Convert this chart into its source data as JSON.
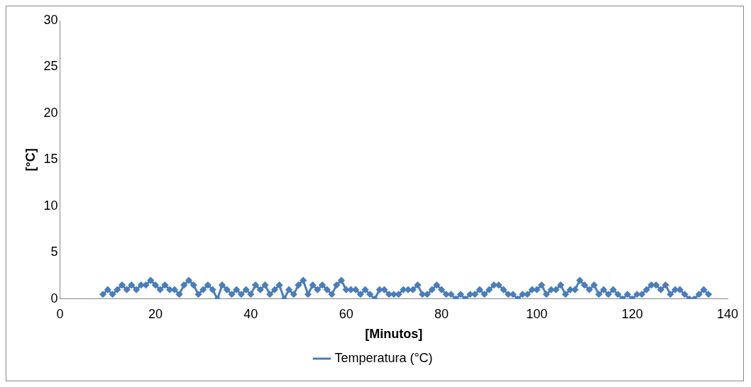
{
  "chart_data": {
    "type": "line",
    "xlabel": "[Minutos]",
    "ylabel": "[°C]",
    "x": [
      9,
      10,
      11,
      12,
      13,
      14,
      15,
      16,
      17,
      18,
      19,
      20,
      21,
      22,
      23,
      24,
      25,
      26,
      27,
      28,
      29,
      30,
      31,
      32,
      33,
      34,
      35,
      36,
      37,
      38,
      39,
      40,
      41,
      42,
      43,
      44,
      45,
      46,
      47,
      48,
      49,
      50,
      51,
      52,
      53,
      54,
      55,
      56,
      57,
      58,
      59,
      60,
      61,
      62,
      63,
      64,
      65,
      66,
      67,
      68,
      69,
      70,
      71,
      72,
      73,
      74,
      75,
      76,
      77,
      78,
      79,
      80,
      81,
      82,
      83,
      84,
      85,
      86,
      87,
      88,
      89,
      90,
      91,
      92,
      93,
      94,
      95,
      96,
      97,
      98,
      99,
      100,
      101,
      102,
      103,
      104,
      105,
      106,
      107,
      108,
      109,
      110,
      111,
      112,
      113,
      114,
      115,
      116,
      117,
      118,
      119,
      120,
      121,
      122,
      123,
      124,
      125,
      126,
      127,
      128,
      129,
      130,
      131,
      132,
      133,
      134,
      135,
      136
    ],
    "series": [
      {
        "name": "Temperatura (°C)",
        "color": "#4a7ebb",
        "values": [
          0.5,
          1,
          0.5,
          1,
          1.5,
          1,
          1.5,
          1,
          1.5,
          1.5,
          2,
          1.5,
          1,
          1.5,
          1,
          1,
          0.5,
          1.5,
          2,
          1.5,
          0.5,
          1,
          1.5,
          1,
          0,
          1.5,
          1,
          0.5,
          1,
          0.5,
          1,
          0.5,
          1.5,
          1,
          1.5,
          0.5,
          1,
          1.5,
          0,
          1,
          0.5,
          1.5,
          2,
          0.5,
          1.5,
          1,
          1.5,
          1,
          0.5,
          1.5,
          2,
          1,
          1,
          1,
          0.5,
          1,
          0.5,
          0,
          1,
          1,
          0.5,
          0.5,
          0.5,
          1,
          1,
          1,
          1.5,
          0.5,
          0.5,
          1,
          1.5,
          1,
          0.5,
          0.5,
          0,
          0.5,
          0,
          0.5,
          0.5,
          1,
          0.5,
          1,
          1.5,
          1.5,
          1,
          0.5,
          0.5,
          0,
          0.5,
          0.5,
          1,
          1,
          1.5,
          0.5,
          1,
          1,
          1.5,
          0.5,
          1,
          1,
          2,
          1.5,
          1,
          1.5,
          0.5,
          1,
          0.5,
          1,
          0.5,
          0,
          0.5,
          0,
          0.5,
          0.5,
          1,
          1.5,
          1.5,
          1,
          1.5,
          0.5,
          1,
          1,
          0.5,
          0,
          0,
          0.5,
          1,
          0.5
        ]
      }
    ],
    "xlim": [
      0,
      140
    ],
    "xticks": [
      0,
      20,
      40,
      60,
      80,
      100,
      120,
      140
    ],
    "ylim": [
      0,
      30
    ],
    "yticks": [
      0,
      5,
      10,
      15,
      20,
      25,
      30
    ],
    "grid": false,
    "legend": "bottom",
    "marker": "diamond",
    "line_style": "solid"
  }
}
